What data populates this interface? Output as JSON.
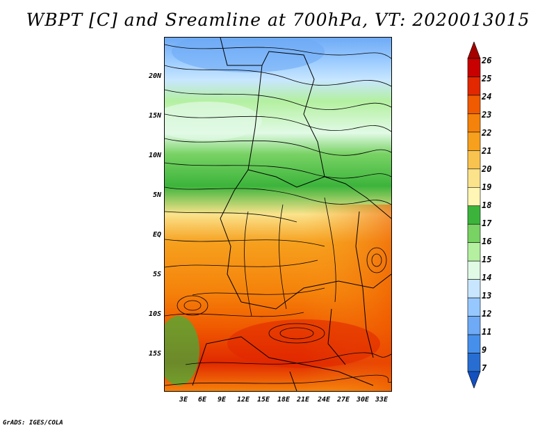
{
  "title": "WBPT [C] and Sreamline at 700hPa, VT: 2020013015",
  "footer": "GrADS: IGES/COLA",
  "map": {
    "lat_labels": [
      "20N",
      "15N",
      "10N",
      "5N",
      "EQ",
      "5S",
      "10S",
      "15S"
    ],
    "lon_labels": [
      "3E",
      "6E",
      "9E",
      "12E",
      "15E",
      "18E",
      "21E",
      "24E",
      "27E",
      "30E",
      "33E"
    ]
  },
  "colorbar": {
    "levels": [
      "26",
      "25",
      "24",
      "23",
      "22",
      "21",
      "20",
      "19",
      "18",
      "17",
      "16",
      "15",
      "14",
      "13",
      "12",
      "11",
      "9",
      "7"
    ],
    "colors": [
      "#a50000",
      "#c80000",
      "#e12800",
      "#f05a00",
      "#f5820a",
      "#f6a01e",
      "#f9c350",
      "#fbe38c",
      "#fff5b4",
      "#3cb43c",
      "#78d264",
      "#b4f0a0",
      "#e1fae6",
      "#c8e6ff",
      "#96c8ff",
      "#6eaaf5",
      "#4690eb",
      "#286ed2",
      "#1450be"
    ]
  }
}
